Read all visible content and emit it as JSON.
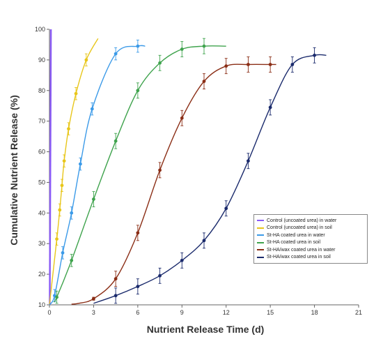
{
  "chart_data": {
    "type": "line",
    "title": "",
    "xlabel": "Nutrient Release Time (d)",
    "ylabel": "Cumulative Nutrient Release (%)",
    "xlim": [
      0,
      21
    ],
    "ylim": [
      10,
      100
    ],
    "xticks": [
      0,
      3,
      6,
      9,
      12,
      15,
      18,
      21
    ],
    "yticks": [
      10,
      20,
      30,
      40,
      50,
      60,
      70,
      80,
      90,
      100
    ],
    "grid": false,
    "legend_position": "bottom-right",
    "series": [
      {
        "name": "Control (uncoated urea) in water",
        "color": "#8B5CF6",
        "x": [
          0.02,
          0.04,
          0.06,
          0.08,
          0.1
        ],
        "y": [
          20,
          50,
          80,
          95,
          100
        ],
        "errors": [
          0,
          0,
          0,
          0,
          0
        ]
      },
      {
        "name": "Control (uncoated urea) in soil",
        "color": "#E8C61A",
        "x": [
          0,
          0.5,
          0.7,
          0.85,
          1.0,
          1.3,
          1.8,
          2.5,
          3.3
        ],
        "y": [
          10,
          31.5,
          41,
          49,
          57,
          67.5,
          79,
          90,
          97
        ],
        "errors": [
          0,
          2,
          2,
          2,
          2,
          2,
          2,
          2,
          0
        ]
      },
      {
        "name": "St-HA coated urea in water",
        "color": "#3B9AE8",
        "x": [
          0,
          0.35,
          0.9,
          1.5,
          2.1,
          2.9,
          4.5,
          6.0,
          6.5
        ],
        "y": [
          10,
          13,
          27,
          40,
          56,
          74,
          92,
          94.5,
          94.5
        ],
        "errors": [
          0,
          2,
          2,
          2,
          2,
          2,
          2,
          2,
          0
        ]
      },
      {
        "name": "St-HA coated urea in soil",
        "color": "#3FA34D",
        "x": [
          0.3,
          0.5,
          1.5,
          3.0,
          4.5,
          6.0,
          7.5,
          9.0,
          10.5,
          12.0
        ],
        "y": [
          11,
          12.5,
          24.5,
          44.5,
          63.5,
          80,
          89,
          93.5,
          94.5,
          94.5
        ],
        "errors": [
          0,
          2,
          2,
          2.5,
          2.5,
          2.5,
          2.5,
          2.5,
          2.5,
          0
        ]
      },
      {
        "name": "St-HA/wax coated urea in water",
        "color": "#8B2E16",
        "x": [
          1.5,
          2.0,
          3.0,
          4.5,
          6.0,
          7.5,
          9.0,
          10.5,
          12.0,
          13.5,
          15.0,
          15.4
        ],
        "y": [
          10.2,
          10.5,
          12,
          18.5,
          33.5,
          54,
          71,
          83,
          88,
          88.5,
          88.5,
          88.5
        ],
        "errors": [
          0,
          0,
          0.5,
          2.5,
          2.5,
          2.5,
          2.5,
          2.5,
          2.5,
          2.5,
          2.5,
          0
        ]
      },
      {
        "name": "St-HA/wax coated urea in soil",
        "color": "#1A2A6C",
        "x": [
          3.0,
          4.5,
          6.0,
          7.5,
          9.0,
          10.5,
          12.0,
          13.5,
          15.0,
          16.5,
          18.0,
          18.8
        ],
        "y": [
          10.5,
          13,
          16,
          19.5,
          24.5,
          31,
          41.5,
          57,
          74.5,
          88.5,
          91.5,
          91.5
        ],
        "errors": [
          0,
          2.5,
          2.5,
          2.5,
          2.5,
          2.5,
          2.5,
          2.5,
          2.5,
          2.5,
          2.5,
          0
        ]
      }
    ]
  }
}
